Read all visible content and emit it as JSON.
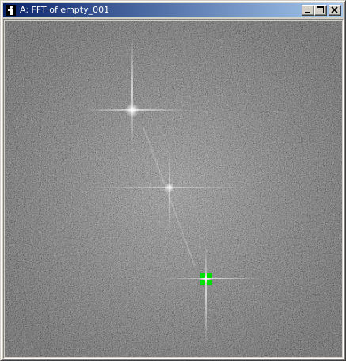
{
  "window": {
    "title": "A: FFT of empty_001",
    "buttons": [
      "minimize-icon",
      "maximize-icon",
      "close-icon"
    ]
  },
  "image": {
    "type": "fft-power-spectrum",
    "selection_color": "#00ff00"
  }
}
